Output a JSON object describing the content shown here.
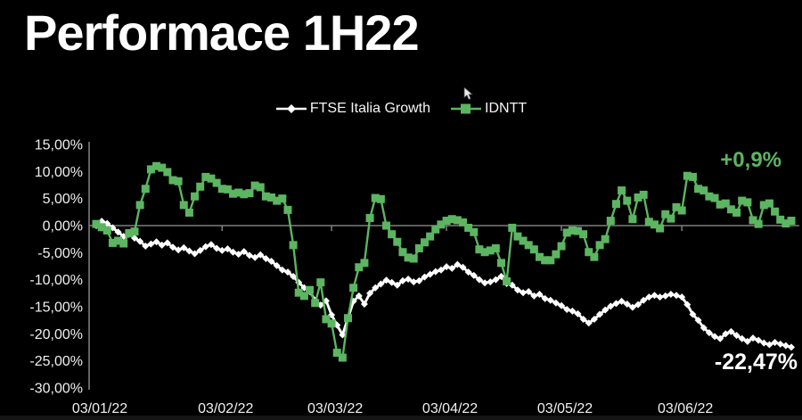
{
  "title": "Performace 1H22",
  "colors": {
    "background": "#000000",
    "axis": "#7e7e7e",
    "tick_text": "#f0f0f0",
    "ftse": "#ffffff",
    "idntt": "#5cb561"
  },
  "chart_data": {
    "type": "line",
    "title": "Performace 1H22",
    "xlabel": "",
    "ylabel": "",
    "ylim": [
      -30,
      15
    ],
    "grid": "zero-line-only",
    "legend_position": "top-center",
    "y_ticks": {
      "values": [
        15,
        10,
        5,
        0,
        -5,
        -10,
        -15,
        -20,
        -25,
        -30
      ],
      "labels": [
        "15,00%",
        "10,00%",
        "5,00%",
        "0,00%",
        "-5,00%",
        "-10,00%",
        "-15,00%",
        "-20,00%",
        "-25,00%",
        "-30,00%"
      ]
    },
    "x_ticks": {
      "labels": [
        "03/01/22",
        "03/02/22",
        "03/03/22",
        "03/04/22",
        "03/05/22",
        "03/06/22"
      ],
      "days": [
        0,
        23,
        43,
        64,
        85,
        107
      ]
    },
    "series": [
      {
        "name": "FTSE Italia Growth",
        "color": "#ffffff",
        "marker": "diamond",
        "final_label": "-22,47%",
        "values": [
          0.0,
          0.8,
          0.4,
          -0.4,
          -1.2,
          -2.0,
          -1.6,
          -2.3,
          -2.9,
          -3.8,
          -3.4,
          -3.0,
          -3.6,
          -3.2,
          -4.0,
          -4.5,
          -4.1,
          -4.7,
          -5.2,
          -4.6,
          -3.9,
          -3.5,
          -4.2,
          -4.6,
          -4.3,
          -4.9,
          -5.3,
          -4.8,
          -5.5,
          -5.9,
          -5.4,
          -6.1,
          -6.6,
          -7.4,
          -8.2,
          -8.6,
          -9.4,
          -10.5,
          -11.5,
          -12.2,
          -13.8,
          -14.7,
          -13.9,
          -16.5,
          -18.4,
          -20.2,
          -17.1,
          -14.0,
          -13.0,
          -14.5,
          -12.5,
          -11.5,
          -10.8,
          -10.1,
          -10.5,
          -11.0,
          -10.2,
          -9.9,
          -10.4,
          -10.2,
          -9.5,
          -9.0,
          -8.5,
          -8.2,
          -7.6,
          -7.9,
          -7.2,
          -7.7,
          -8.6,
          -9.2,
          -10.0,
          -10.6,
          -10.4,
          -10.0,
          -9.4,
          -10.7,
          -11.0,
          -11.9,
          -12.4,
          -12.2,
          -13.0,
          -12.7,
          -13.5,
          -13.8,
          -14.3,
          -14.8,
          -15.5,
          -15.8,
          -16.3,
          -17.3,
          -18.0,
          -17.3,
          -16.4,
          -15.6,
          -14.9,
          -14.4,
          -14.0,
          -14.5,
          -15.1,
          -14.6,
          -13.8,
          -13.2,
          -12.9,
          -13.2,
          -13.0,
          -12.7,
          -12.9,
          -13.2,
          -14.6,
          -16.4,
          -17.5,
          -18.9,
          -19.8,
          -20.5,
          -20.9,
          -20.0,
          -19.6,
          -20.3,
          -20.9,
          -21.4,
          -20.8,
          -21.2,
          -21.7,
          -22.0,
          -21.6,
          -21.9,
          -22.2,
          -22.47
        ]
      },
      {
        "name": "IDNTT",
        "color": "#5cb561",
        "marker": "square",
        "final_label": "+0,9%",
        "values": [
          0.3,
          -0.3,
          -0.9,
          -3.2,
          -2.8,
          -3.3,
          -1.4,
          -1.1,
          3.8,
          6.8,
          10.4,
          11.0,
          10.7,
          9.9,
          8.4,
          8.2,
          3.8,
          2.4,
          5.4,
          7.2,
          9.0,
          8.7,
          7.9,
          6.8,
          6.7,
          5.9,
          6.1,
          5.8,
          6.0,
          7.4,
          7.1,
          5.4,
          5.2,
          4.6,
          5.0,
          2.9,
          -3.6,
          -12.4,
          -13.0,
          -11.9,
          -14.3,
          -10.5,
          -17.3,
          -18.1,
          -23.5,
          -24.4,
          -17.1,
          -11.5,
          -7.7,
          -6.9,
          1.4,
          5.1,
          4.9,
          0.0,
          -1.6,
          -3.0,
          -4.9,
          -5.9,
          -6.1,
          -4.2,
          -3.1,
          -2.0,
          -0.7,
          0.2,
          0.9,
          1.2,
          1.0,
          0.6,
          -0.4,
          -1.2,
          -4.4,
          -4.9,
          -4.6,
          -4.2,
          -6.9,
          -10.3,
          -0.4,
          -2.0,
          -2.8,
          -3.6,
          -4.4,
          -5.8,
          -6.4,
          -6.4,
          -5.3,
          -3.8,
          -1.3,
          -0.9,
          -1.0,
          -1.6,
          -4.9,
          -5.8,
          -3.6,
          -2.5,
          0.9,
          4.0,
          6.5,
          4.6,
          1.2,
          5.2,
          5.7,
          0.7,
          0.2,
          -0.5,
          2.1,
          1.3,
          3.4,
          2.8,
          9.2,
          9.0,
          6.8,
          6.5,
          5.4,
          5.1,
          3.9,
          4.1,
          3.0,
          2.4,
          4.6,
          4.3,
          1.0,
          0.3,
          3.8,
          4.1,
          2.6,
          1.1,
          0.4,
          0.9
        ]
      }
    ]
  }
}
